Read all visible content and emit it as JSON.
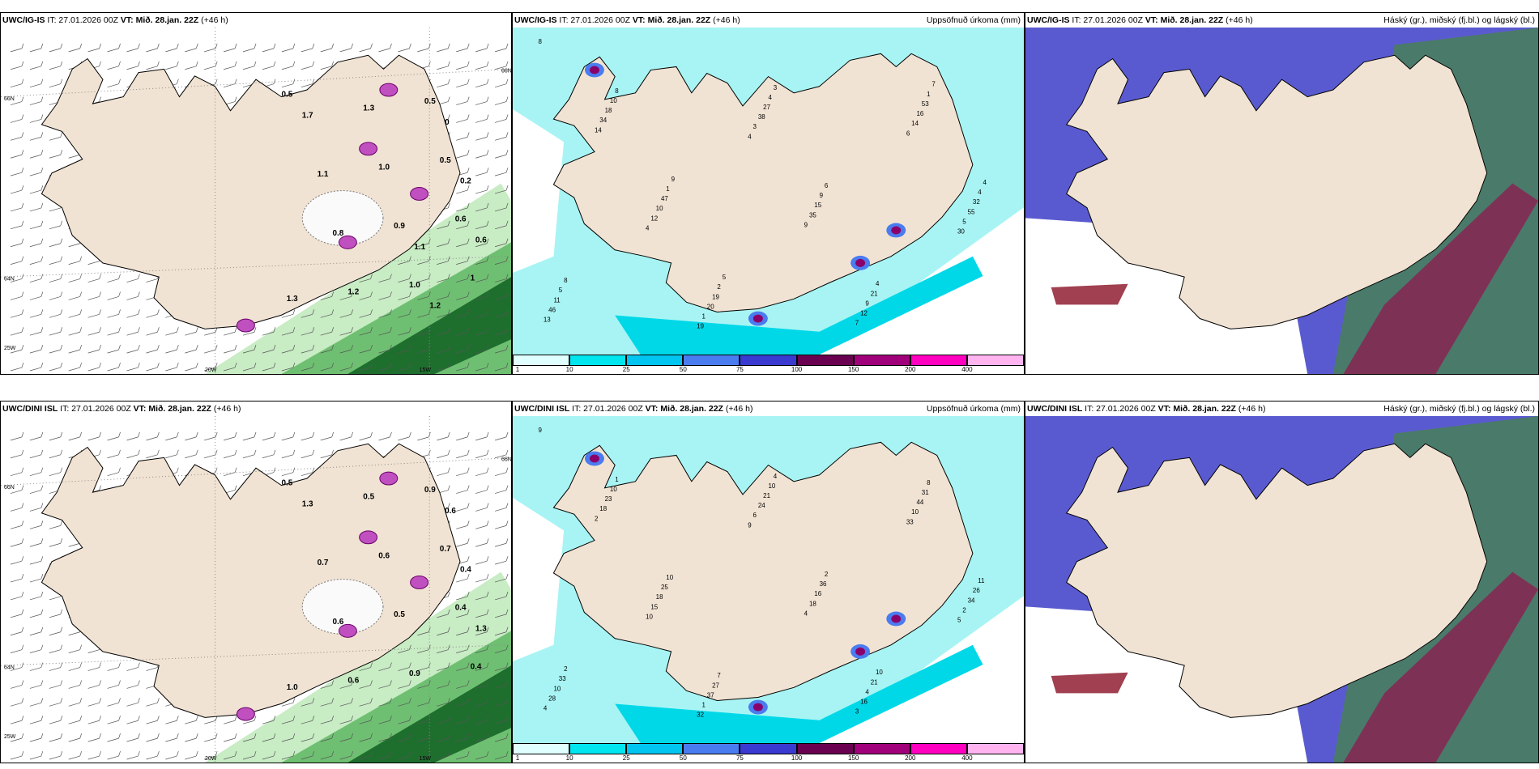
{
  "panels": [
    {
      "id": "p1",
      "model": "UWC/IG-IS",
      "it": "IT: 27.01.2026 00Z",
      "vt": "VT: Mið. 28.jan. 22Z",
      "lead": "(+46 h)",
      "right": "",
      "kind": "wind",
      "axis": {
        "lat1": "66N",
        "lat2": "64N",
        "lat3": "25W",
        "lon1": "20W",
        "lon2": "15W",
        "east": "66N"
      },
      "values": [
        "0.5",
        "1",
        "0.6",
        "0.5",
        "0.5",
        "1.0",
        "0.9",
        "1.0",
        "1.3",
        "1.2",
        "0.8",
        "1.1",
        "1.7",
        "1.3",
        "0.6",
        "0.2",
        "0",
        "1.2",
        "1.1"
      ]
    },
    {
      "id": "p2",
      "model": "UWC/IG-IS",
      "it": "IT: 27.01.2026 00Z",
      "vt": "VT: Mið. 28.jan. 22Z",
      "lead": "(+46 h)",
      "right": "Uppsöfnuð úrkoma (mm)",
      "kind": "precip",
      "values": [
        "8",
        "4",
        "30",
        "19",
        "6",
        "4",
        "7",
        "14",
        "9",
        "13",
        "3",
        "5",
        "1",
        "14",
        "12",
        "12",
        "34",
        "35",
        "46",
        "38",
        "55",
        "20",
        "16",
        "10",
        "9",
        "18",
        "15",
        "11",
        "27",
        "32",
        "19",
        "53",
        "47",
        "21",
        "10",
        "9",
        "5",
        "4",
        "4",
        "2",
        "1",
        "1",
        "4",
        "8",
        "6",
        "8",
        "3",
        "4",
        "5",
        "7",
        "9"
      ]
    },
    {
      "id": "p3",
      "model": "UWC/IG-IS",
      "it": "IT: 27.01.2026 00Z",
      "vt": "VT: Mið. 28.jan. 22Z",
      "lead": "(+46 h)",
      "right": "Háský (gr.), miðský (fj.bl.) og lágský (bl.)",
      "kind": "cloud"
    },
    {
      "id": "p4",
      "model": "UWC/DINI ISL",
      "it": "IT: 27.01.2026 00Z",
      "vt": "VT: Mið. 28.jan. 22Z",
      "lead": "(+46 h)",
      "right": "",
      "kind": "wind",
      "axis": {
        "lat1": "66N",
        "lat2": "64N",
        "lat3": "25W",
        "lon1": "20W",
        "lon2": "15W",
        "east": "66N"
      },
      "values": [
        "0.5",
        "0.4",
        "0.4",
        "0.7",
        "0.9",
        "0.9",
        "0.5",
        "0.6",
        "0.5",
        "0.6",
        "0.6",
        "0.7",
        "1.3",
        "1.0",
        "1.3",
        "0.4",
        "0.6"
      ]
    },
    {
      "id": "p5",
      "model": "UWC/DINI ISL",
      "it": "IT: 27.01.2026 00Z",
      "vt": "VT: Mið. 28.jan. 22Z",
      "lead": "(+46 h)",
      "right": "Uppsöfnuð úrkoma (mm)",
      "kind": "precip",
      "values": [
        "9",
        "9",
        "5",
        "32",
        "33",
        "10",
        "3",
        "2",
        "4",
        "4",
        "6",
        "2",
        "1",
        "10",
        "15",
        "16",
        "18",
        "18",
        "28",
        "24",
        "34",
        "37",
        "44",
        "18",
        "4",
        "23",
        "16",
        "10",
        "21",
        "26",
        "27",
        "31",
        "25",
        "21",
        "10",
        "36",
        "33",
        "10",
        "11",
        "7",
        "8",
        "10",
        "10",
        "1",
        "2",
        "2",
        "4"
      ]
    },
    {
      "id": "p6",
      "model": "UWC/DINI ISL",
      "it": "IT: 27.01.2026 00Z",
      "vt": "VT: Mið. 28.jan. 22Z",
      "lead": "(+46 h)",
      "right": "Háský (gr.), miðský (fj.bl.) og lágský (bl.)",
      "kind": "cloud"
    }
  ],
  "colorbar": {
    "ticks": [
      "1",
      "10",
      "25",
      "50",
      "75",
      "100",
      "150",
      "200",
      "400"
    ],
    "colors": [
      "#e0ffff",
      "#00e5ee",
      "#00c5f0",
      "#4a7cf0",
      "#3a3ad0",
      "#6a0050",
      "#a0007a",
      "#ff00c0",
      "#ffb4f0"
    ]
  }
}
